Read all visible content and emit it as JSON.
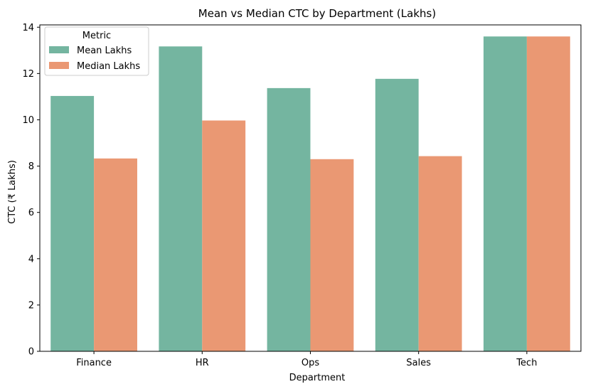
{
  "chart_data": {
    "type": "bar",
    "title": "Mean vs Median CTC by Department (Lakhs)",
    "xlabel": "Department",
    "ylabel": "CTC (₹ Lakhs)",
    "categories": [
      "Finance",
      "HR",
      "Ops",
      "Sales",
      "Tech"
    ],
    "series": [
      {
        "name": "Mean Lakhs",
        "values": [
          11.03,
          13.17,
          11.37,
          11.77,
          13.6
        ],
        "color": "#74b5a0"
      },
      {
        "name": "Median Lakhs",
        "values": [
          8.33,
          9.97,
          8.3,
          8.43,
          13.6
        ],
        "color": "#ea9873"
      }
    ],
    "ylim": [
      0,
      14.1
    ],
    "yticks": [
      0,
      2,
      4,
      6,
      8,
      10,
      12,
      14
    ],
    "grid": false,
    "legend": {
      "title": "Metric",
      "placement": "top-left"
    }
  }
}
